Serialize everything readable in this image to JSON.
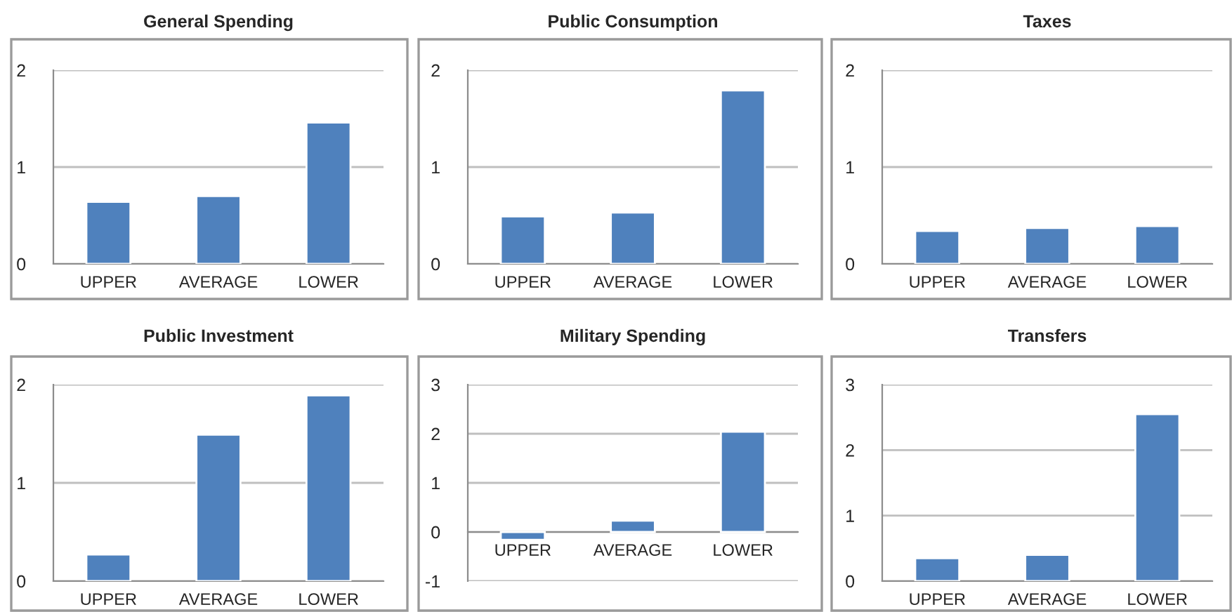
{
  "chart_data": [
    {
      "type": "bar",
      "title": "General Spending",
      "categories": [
        "UPPER",
        "AVERAGE",
        "LOWER"
      ],
      "values": [
        0.64,
        0.7,
        1.46
      ],
      "color": "#4f81bd",
      "ylim": [
        0,
        2
      ],
      "yticks": [
        0,
        1,
        2
      ],
      "grid": "y"
    },
    {
      "type": "bar",
      "title": "Public Consumption",
      "categories": [
        "UPPER",
        "AVERAGE",
        "LOWER"
      ],
      "values": [
        0.49,
        0.53,
        1.79
      ],
      "color": "#4f81bd",
      "ylim": [
        0,
        2
      ],
      "yticks": [
        0,
        1,
        2
      ],
      "grid": "y"
    },
    {
      "type": "bar",
      "title": "Taxes",
      "categories": [
        "UPPER",
        "AVERAGE",
        "LOWER"
      ],
      "values": [
        0.34,
        0.37,
        0.39
      ],
      "color": "#4f81bd",
      "ylim": [
        0,
        2
      ],
      "yticks": [
        0,
        1,
        2
      ],
      "grid": "y"
    },
    {
      "type": "bar",
      "title": "Public Investment",
      "categories": [
        "UPPER",
        "AVERAGE",
        "LOWER"
      ],
      "values": [
        0.27,
        1.49,
        1.89
      ],
      "color": "#4f81bd",
      "ylim": [
        0,
        2
      ],
      "yticks": [
        0,
        1,
        2
      ],
      "grid": "y"
    },
    {
      "type": "bar",
      "title": "Military Spending",
      "categories": [
        "UPPER",
        "AVERAGE",
        "LOWER"
      ],
      "values": [
        -0.16,
        0.23,
        2.04
      ],
      "color": "#4f81bd",
      "ylim": [
        -1,
        3
      ],
      "yticks": [
        -1,
        0,
        1,
        2,
        3
      ],
      "grid": "y"
    },
    {
      "type": "bar",
      "title": "Transfers",
      "categories": [
        "UPPER",
        "AVERAGE",
        "LOWER"
      ],
      "values": [
        0.35,
        0.4,
        2.55
      ],
      "color": "#4f81bd",
      "ylim": [
        0,
        3
      ],
      "yticks": [
        0,
        1,
        2,
        3
      ],
      "grid": "y"
    }
  ]
}
